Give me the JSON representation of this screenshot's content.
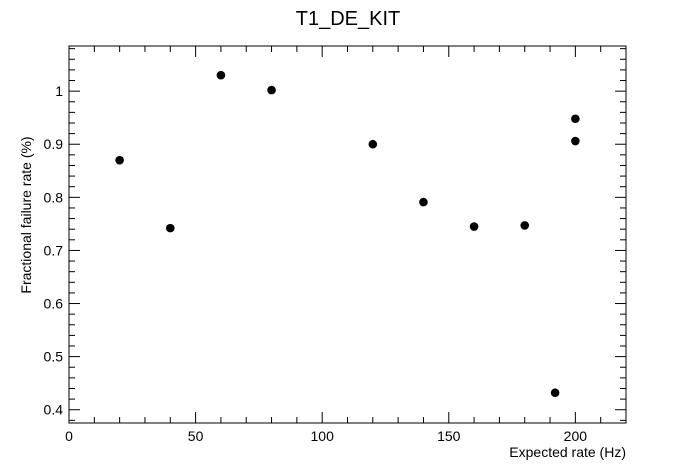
{
  "chart_data": {
    "type": "scatter",
    "title": "T1_DE_KIT",
    "xlabel": "Expected rate (Hz)",
    "ylabel": "Fractional failure rate (%)",
    "xlim": [
      0,
      220
    ],
    "ylim": [
      0.375,
      1.085
    ],
    "x_ticks": [
      0,
      50,
      100,
      150,
      200
    ],
    "x_tick_labels": [
      "0",
      "50",
      "100",
      "150",
      "200"
    ],
    "y_ticks": [
      0.4,
      0.5,
      0.6,
      0.7,
      0.8,
      0.9,
      1.0
    ],
    "y_tick_labels": [
      "0.4",
      "0.5",
      "0.6",
      "0.7",
      "0.8",
      "0.9",
      "1"
    ],
    "grid": false,
    "legend": "none",
    "marker_color": "#000000",
    "points": [
      {
        "x": 20,
        "y": 0.87
      },
      {
        "x": 40,
        "y": 0.742
      },
      {
        "x": 60,
        "y": 1.03
      },
      {
        "x": 80,
        "y": 1.002
      },
      {
        "x": 120,
        "y": 0.9
      },
      {
        "x": 140,
        "y": 0.791
      },
      {
        "x": 160,
        "y": 0.745
      },
      {
        "x": 180,
        "y": 0.747
      },
      {
        "x": 192,
        "y": 0.432
      },
      {
        "x": 200,
        "y": 0.948
      },
      {
        "x": 200,
        "y": 0.906
      }
    ]
  }
}
